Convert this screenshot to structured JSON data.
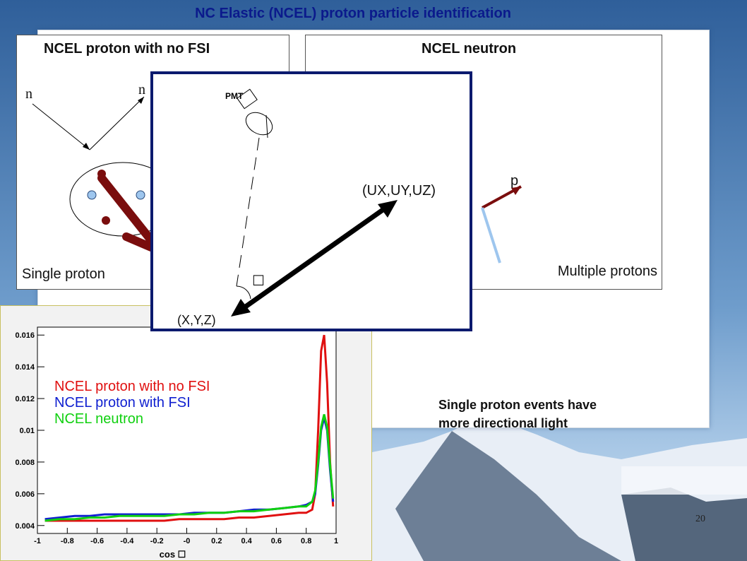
{
  "slide": {
    "title": "NC Elastic (NCEL) proton particle identification",
    "page_number": "20",
    "note_line1": "Single proton events have",
    "note_line2": "more directional light"
  },
  "left_panel": {
    "title": "NCEL proton with no FSI",
    "label_n_in": "n",
    "label_n_out": "n",
    "caption": "Single proton"
  },
  "right_panel": {
    "title": "NCEL neutron",
    "label_p": "p",
    "caption": "Multiple protons"
  },
  "popup": {
    "pmt_label": "PMT",
    "direction_label": "(UX,UY,UZ)",
    "vertex_label": "(X,Y,Z)",
    "angle_symbol": "☐"
  },
  "colors": {
    "title": "#0b1a8c",
    "proton": "#7a0d0d",
    "neutral": "#9ec6ee",
    "series_no_fsi": "#e01010",
    "series_fsi": "#1020d0",
    "series_neutron": "#10d010"
  },
  "chart_data": {
    "type": "line",
    "xlabel": "cos ☐",
    "ylabel": "",
    "xlim": [
      -1,
      1
    ],
    "ylim": [
      0.0035,
      0.0165
    ],
    "x_ticks": [
      "-1",
      "-0.8",
      "-0.6",
      "-0.4",
      "-0.2",
      "-0",
      "0.2",
      "0.4",
      "0.6",
      "0.8",
      "1"
    ],
    "y_ticks": [
      "0.004",
      "0.006",
      "0.008",
      "0.01",
      "0.012",
      "0.014",
      "0.016"
    ],
    "x": [
      -0.95,
      -0.85,
      -0.75,
      -0.65,
      -0.55,
      -0.45,
      -0.35,
      -0.25,
      -0.15,
      -0.05,
      0.05,
      0.15,
      0.25,
      0.35,
      0.45,
      0.55,
      0.65,
      0.75,
      0.8,
      0.84,
      0.86,
      0.88,
      0.9,
      0.92,
      0.94,
      0.96,
      0.98
    ],
    "series": [
      {
        "name": "NCEL proton with no FSI",
        "color": "#e01010",
        "values": [
          0.0043,
          0.0043,
          0.0043,
          0.0043,
          0.0043,
          0.0043,
          0.0043,
          0.0043,
          0.0043,
          0.0044,
          0.0044,
          0.0044,
          0.0044,
          0.0045,
          0.0045,
          0.0046,
          0.0047,
          0.0048,
          0.0048,
          0.005,
          0.006,
          0.01,
          0.015,
          0.016,
          0.013,
          0.008,
          0.0052
        ]
      },
      {
        "name": "NCEL proton with FSI",
        "color": "#1020d0",
        "values": [
          0.0044,
          0.0045,
          0.0046,
          0.0046,
          0.0047,
          0.0047,
          0.0047,
          0.0047,
          0.0047,
          0.0047,
          0.0048,
          0.0048,
          0.0048,
          0.0049,
          0.005,
          0.005,
          0.0051,
          0.0052,
          0.0053,
          0.0055,
          0.006,
          0.0078,
          0.01,
          0.0108,
          0.01,
          0.0075,
          0.0055
        ]
      },
      {
        "name": "NCEL neutron",
        "color": "#10d010",
        "values": [
          0.0043,
          0.0044,
          0.0044,
          0.0045,
          0.0045,
          0.0046,
          0.0046,
          0.0046,
          0.0046,
          0.0047,
          0.0047,
          0.0048,
          0.0048,
          0.0049,
          0.0049,
          0.005,
          0.0051,
          0.0052,
          0.0052,
          0.0055,
          0.0062,
          0.008,
          0.0102,
          0.011,
          0.0102,
          0.0078,
          0.0057
        ]
      }
    ]
  }
}
